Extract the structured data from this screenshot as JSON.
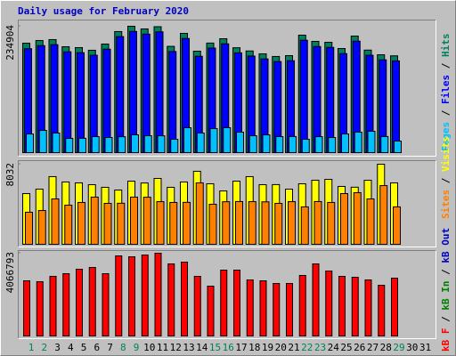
{
  "chart_data": [
    {
      "type": "bar",
      "title": "Daily usage for February 2020",
      "ylim": [
        0,
        234904
      ],
      "yticks": [
        234904
      ],
      "legend_separator": " / ",
      "series": [
        {
          "name": "Pages",
          "color": "#00C0FF",
          "values": [
            36100,
            42700,
            37800,
            27900,
            28100,
            31200,
            29600,
            31000,
            34500,
            32900,
            32700,
            26300,
            47600,
            37800,
            46000,
            47700,
            39400,
            32800,
            34400,
            31200,
            31400,
            26300,
            31100,
            29500,
            36100,
            39500,
            41100,
            31300,
            23000,
            null,
            null
          ]
        },
        {
          "name": "Files",
          "color": "#0000FF",
          "values": [
            193500,
            199200,
            200900,
            187800,
            186100,
            181400,
            192600,
            215800,
            225300,
            220400,
            224600,
            188300,
            212300,
            179500,
            194600,
            202500,
            185800,
            179900,
            174600,
            169700,
            171300,
            209100,
            197500,
            195900,
            184400,
            207400,
            181400,
            172900,
            171000,
            null,
            null
          ]
        },
        {
          "name": "Hits",
          "color": "#00805C",
          "values": [
            203700,
            208600,
            210300,
            197100,
            195500,
            190600,
            202100,
            225100,
            234904,
            230000,
            234100,
            197800,
            221800,
            188900,
            203900,
            211900,
            195200,
            189300,
            184000,
            179100,
            180700,
            218500,
            207000,
            205300,
            193800,
            216800,
            190900,
            182300,
            180300,
            null,
            null
          ]
        }
      ]
    },
    {
      "type": "bar",
      "ylim": [
        0,
        8032
      ],
      "yticks": [
        8032
      ],
      "legend_separator": " / ",
      "series": [
        {
          "name": "Sites",
          "color": "#FF8000",
          "values": [
            3270,
            3440,
            4590,
            3970,
            4240,
            4770,
            4150,
            4160,
            4770,
            4760,
            4320,
            4240,
            4250,
            6180,
            4060,
            4310,
            4330,
            4320,
            4300,
            4150,
            4320,
            3800,
            4330,
            4240,
            5120,
            5210,
            4590,
            5910,
            3800,
            null,
            null
          ]
        },
        {
          "name": "Visits",
          "color": "#FFFF00",
          "values": [
            5120,
            5560,
            6800,
            6270,
            6180,
            6000,
            5740,
            5470,
            6350,
            6170,
            6620,
            5740,
            6270,
            7330,
            6090,
            5380,
            6350,
            6800,
            6000,
            6010,
            5560,
            6090,
            6440,
            6530,
            5830,
            5750,
            6440,
            8032,
            6180,
            null,
            null
          ]
        }
      ]
    },
    {
      "type": "bar",
      "ylim": [
        0,
        4066793
      ],
      "yticks": [
        4066793
      ],
      "legend_separator": " / ",
      "categories": [
        "1",
        "2",
        "3",
        "4",
        "5",
        "6",
        "7",
        "8",
        "9",
        "10",
        "11",
        "12",
        "13",
        "14",
        "15",
        "16",
        "17",
        "18",
        "19",
        "20",
        "21",
        "22",
        "23",
        "24",
        "25",
        "26",
        "27",
        "28",
        "29",
        "30",
        "31"
      ],
      "category_colors": [
        "#00805C",
        "#00805C",
        "#000000",
        "#000000",
        "#000000",
        "#000000",
        "#000000",
        "#00805C",
        "#00805C",
        "#000000",
        "#000000",
        "#000000",
        "#000000",
        "#000000",
        "#00805C",
        "#00805C",
        "#000000",
        "#000000",
        "#000000",
        "#000000",
        "#000000",
        "#00805C",
        "#00805C",
        "#000000",
        "#000000",
        "#000000",
        "#000000",
        "#000000",
        "#00805C",
        "#000000",
        "#000000"
      ],
      "series": [
        {
          "name": "kB F",
          "color": "#FF0000",
          "values": [
            2725600,
            2682400,
            2942000,
            3071700,
            3288100,
            3374600,
            3071700,
            3937000,
            3893800,
            3980300,
            4066793,
            3547600,
            3634200,
            2942000,
            2466000,
            3244800,
            3244800,
            2768900,
            2725600,
            2595800,
            2595800,
            2985200,
            3547600,
            3201500,
            2942000,
            2898700,
            2768900,
            2509300,
            2855400,
            null,
            null
          ]
        },
        {
          "name": "kB In",
          "color": "#008000",
          "values": [
            0,
            0,
            0,
            0,
            0,
            0,
            0,
            0,
            0,
            0,
            0,
            0,
            0,
            0,
            0,
            0,
            0,
            0,
            0,
            0,
            0,
            0,
            0,
            0,
            0,
            0,
            0,
            0,
            0,
            null,
            null
          ]
        },
        {
          "name": "kB Out",
          "color": "#0000C0",
          "values": [
            0,
            0,
            0,
            0,
            0,
            0,
            0,
            0,
            0,
            0,
            0,
            0,
            0,
            0,
            0,
            0,
            0,
            0,
            0,
            0,
            0,
            0,
            0,
            0,
            0,
            0,
            0,
            0,
            0,
            null,
            null
          ]
        }
      ]
    }
  ]
}
